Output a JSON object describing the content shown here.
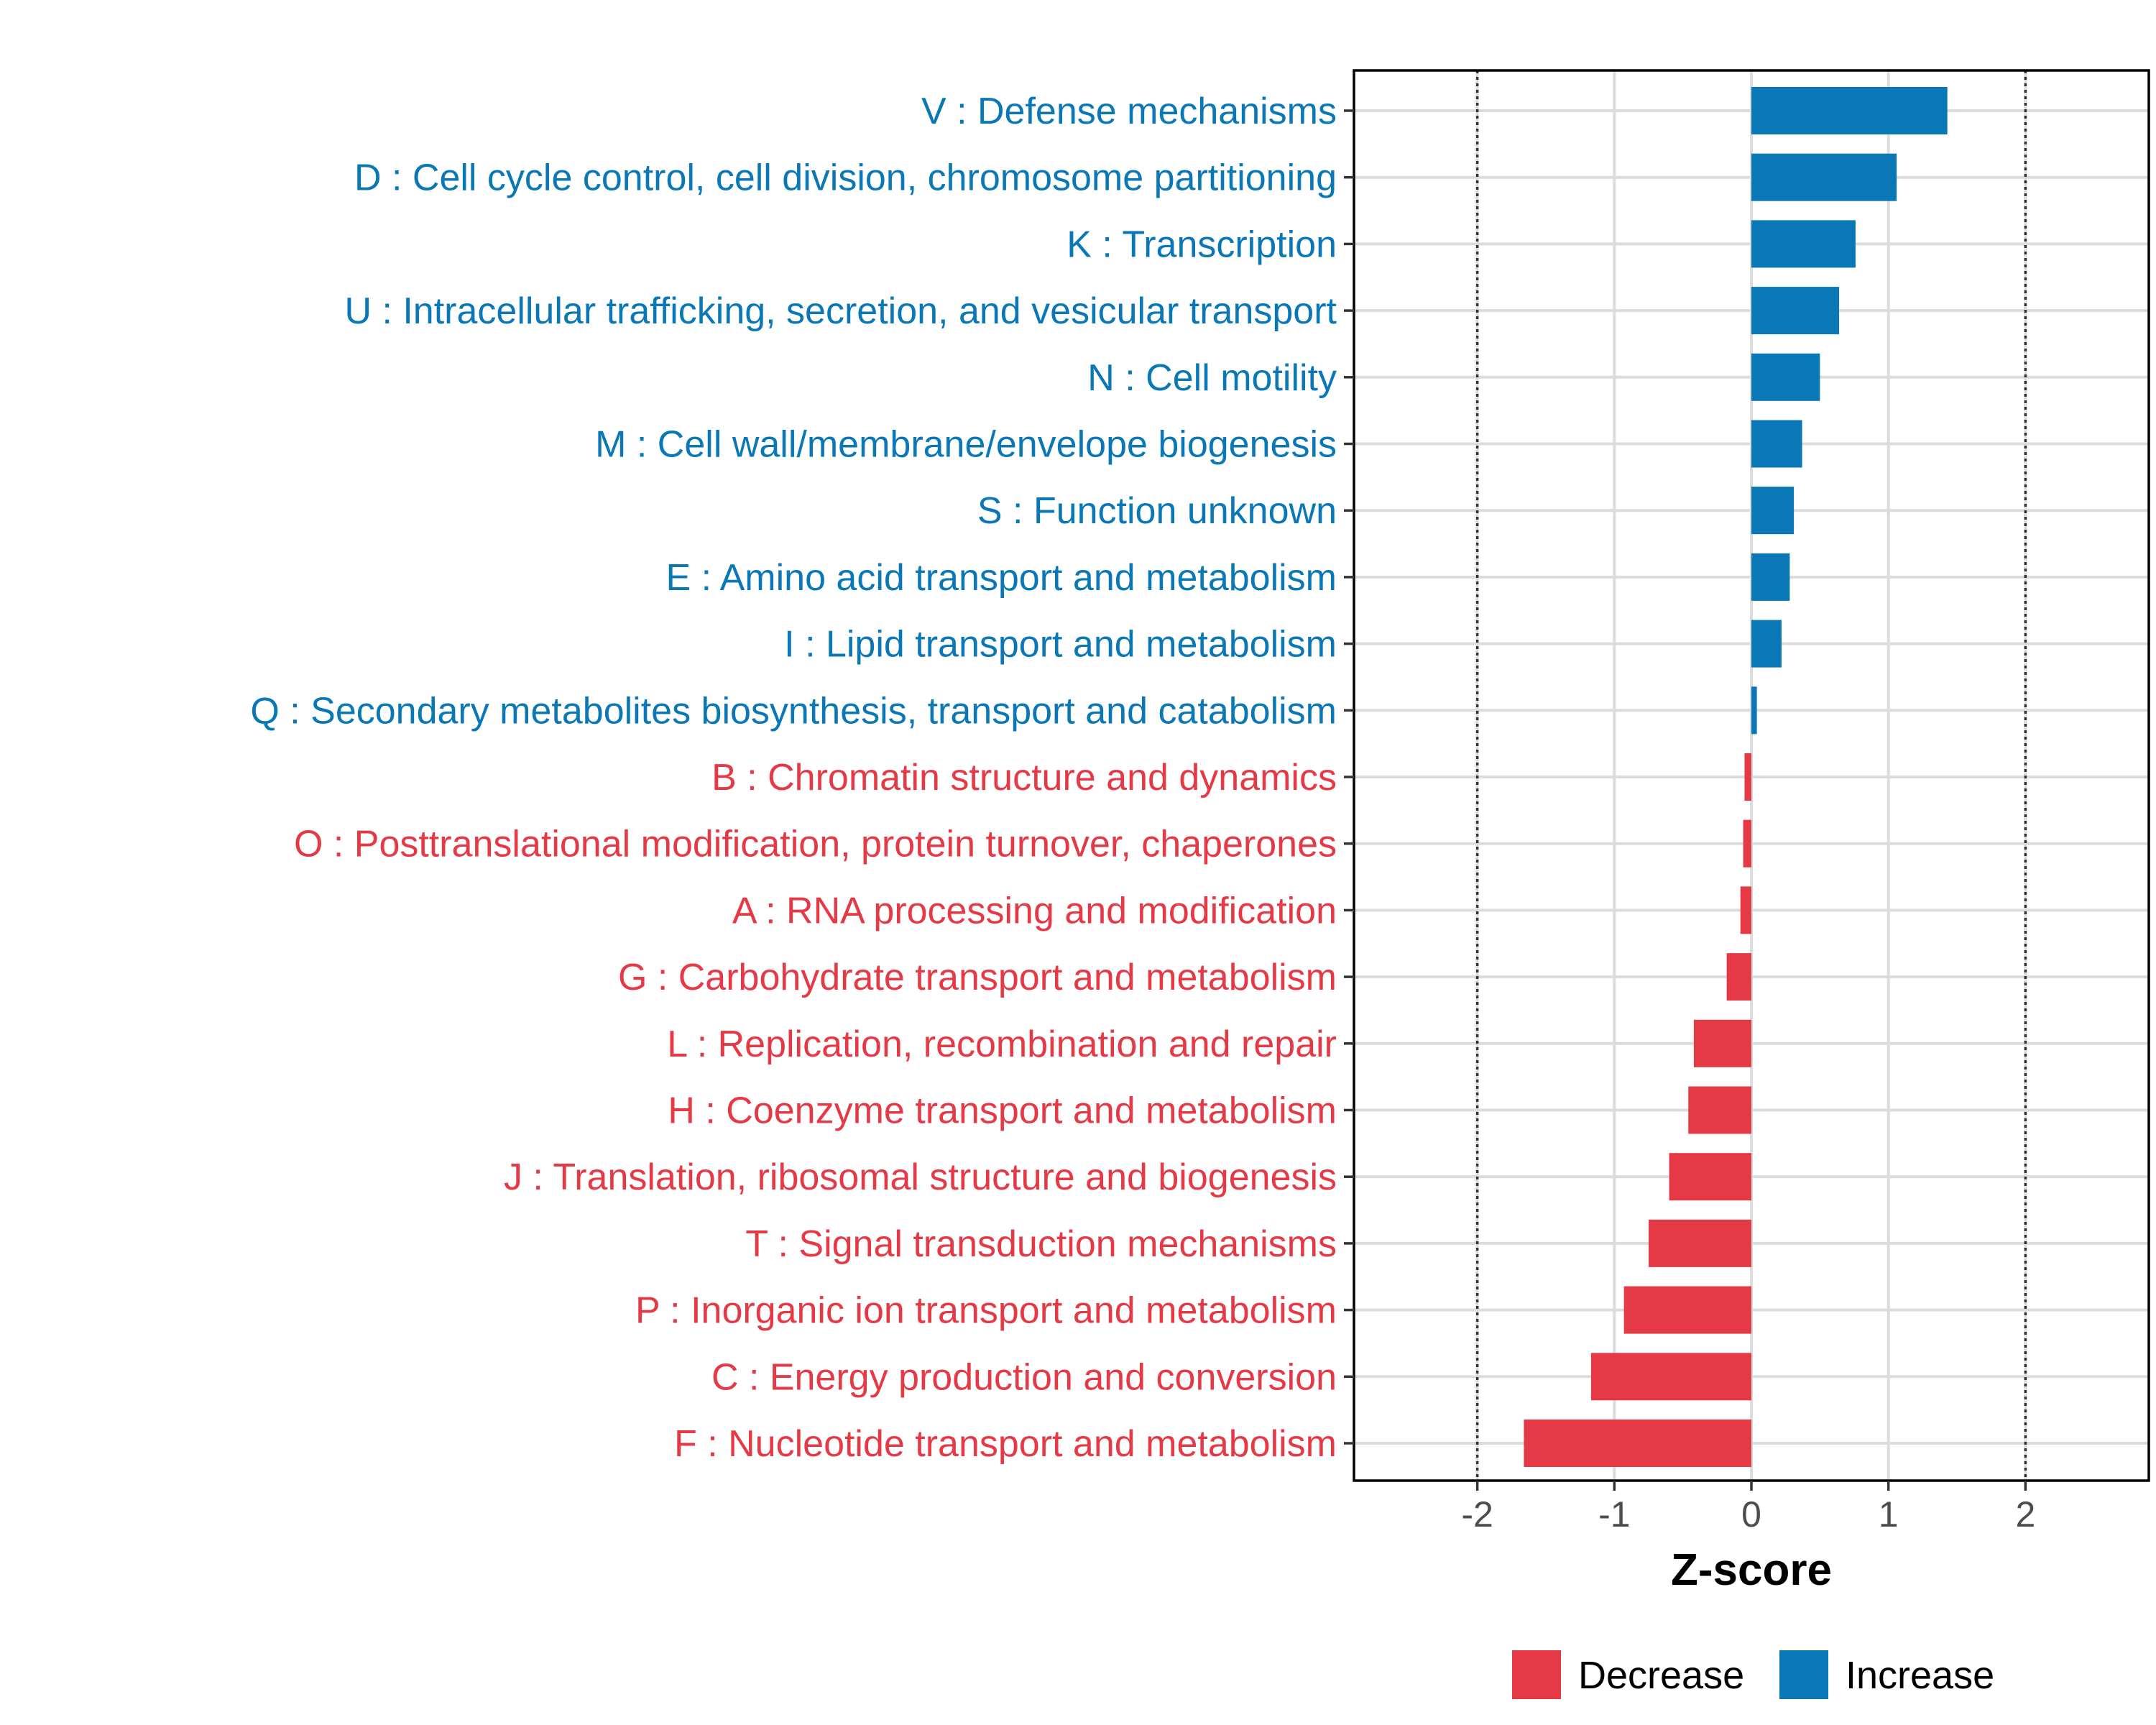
{
  "chart_data": {
    "type": "bar",
    "orientation": "horizontal",
    "title": "",
    "xlabel": "Z-score",
    "ylabel": "",
    "xlim": [
      -2.9,
      2.9
    ],
    "xticks": [
      -2,
      -1,
      0,
      1,
      2
    ],
    "xtick_labels": [
      "-2",
      "-1",
      "0",
      "1",
      "2"
    ],
    "reference_lines": [
      -2,
      2
    ],
    "grid": true,
    "legend_position": "bottom",
    "colors": {
      "Decrease": "#e63946",
      "Increase": "#0a77b6"
    },
    "categories": [
      "V : Defense mechanisms",
      "D : Cell cycle control, cell division, chromosome partitioning",
      "K : Transcription",
      "U : Intracellular trafficking, secretion, and vesicular transport",
      "N : Cell motility",
      "M : Cell wall/membrane/envelope biogenesis",
      "S : Function unknown",
      "E : Amino acid transport and metabolism",
      "I : Lipid transport and metabolism",
      "Q : Secondary metabolites biosynthesis, transport and catabolism",
      "B : Chromatin structure and dynamics",
      "O : Posttranslational modification, protein turnover, chaperones",
      "A : RNA processing and modification",
      "G : Carbohydrate transport and metabolism",
      "L : Replication, recombination and repair",
      "H : Coenzyme transport and metabolism",
      "J : Translation, ribosomal structure and biogenesis",
      "T : Signal transduction mechanisms",
      "P : Inorganic ion transport and metabolism",
      "C : Energy production and conversion",
      "F : Nucleotide transport and metabolism"
    ],
    "values": [
      1.43,
      1.06,
      0.76,
      0.64,
      0.5,
      0.37,
      0.31,
      0.28,
      0.22,
      0.04,
      -0.05,
      -0.06,
      -0.08,
      -0.18,
      -0.42,
      -0.46,
      -0.6,
      -0.75,
      -0.93,
      -1.17,
      -1.66
    ],
    "groups": [
      "Increase",
      "Increase",
      "Increase",
      "Increase",
      "Increase",
      "Increase",
      "Increase",
      "Increase",
      "Increase",
      "Increase",
      "Decrease",
      "Decrease",
      "Decrease",
      "Decrease",
      "Decrease",
      "Decrease",
      "Decrease",
      "Decrease",
      "Decrease",
      "Decrease",
      "Decrease"
    ],
    "legend": [
      "Decrease",
      "Increase"
    ]
  }
}
